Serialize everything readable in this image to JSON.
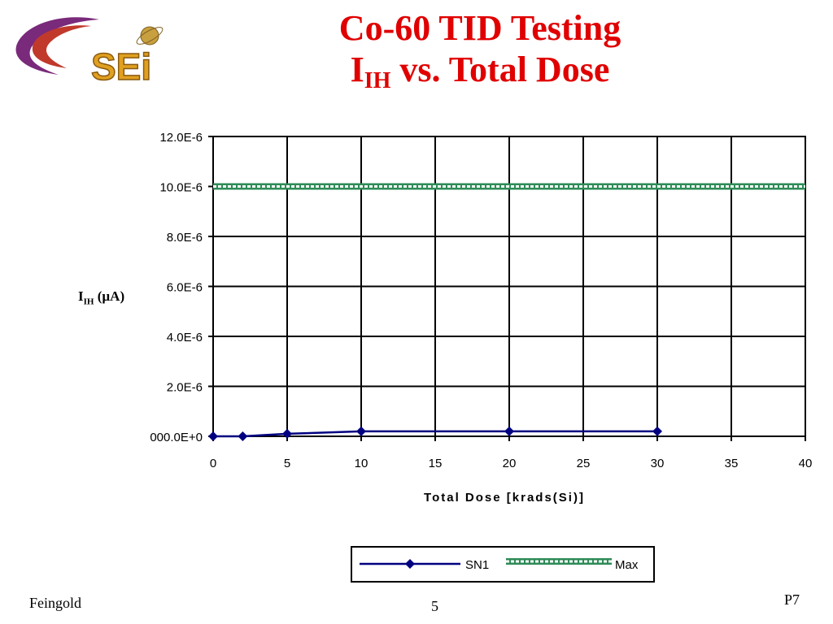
{
  "logo": {
    "text": "SEi"
  },
  "title": {
    "line1": "Co-60 TID Testing",
    "line2_main": "I",
    "line2_sub": "IH",
    "line2_rest": " vs. Total Dose"
  },
  "colors": {
    "title": "#e00000",
    "sn1": "#000080",
    "max": "#2e8b57"
  },
  "chart_data": {
    "type": "line",
    "xlabel": "Total Dose [krads(Si)]",
    "ylabel_main": "I",
    "ylabel_sub": "IH",
    "ylabel_rest": " (µA)",
    "xlim": [
      0,
      40
    ],
    "ylim": [
      0,
      1.2e-05
    ],
    "x_ticks": [
      "0",
      "5",
      "10",
      "15",
      "20",
      "25",
      "30",
      "35",
      "40"
    ],
    "y_ticks": [
      "000.0E+0",
      "2.0E-6",
      "4.0E-6",
      "6.0E-6",
      "8.0E-6",
      "10.0E-6",
      "12.0E-6"
    ],
    "grid": true,
    "legend_position": "bottom",
    "series": [
      {
        "name": "SN1",
        "marker": "diamond",
        "x": [
          0,
          2,
          5,
          10,
          20,
          30
        ],
        "y": [
          0.0,
          0.0,
          1e-07,
          2e-07,
          2e-07,
          2e-07
        ]
      },
      {
        "name": "Max",
        "marker": "none",
        "x": [
          0,
          40
        ],
        "y": [
          1e-05,
          1e-05
        ]
      }
    ]
  },
  "footer": {
    "left": "Feingold",
    "center": "5",
    "right": "P7"
  }
}
